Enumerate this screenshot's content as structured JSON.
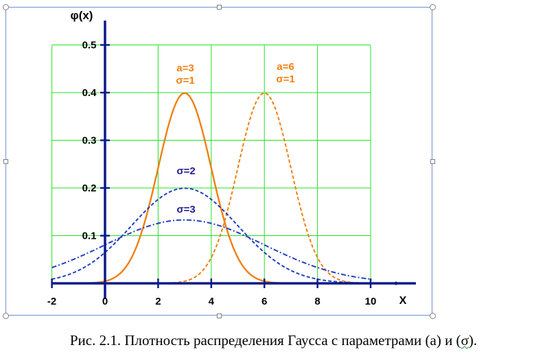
{
  "chart_data": {
    "type": "line",
    "ylabel": "φ(x)",
    "xlabel": "X",
    "xlim": [
      -2,
      10
    ],
    "ylim": [
      0,
      0.5
    ],
    "x_ticks": [
      "-2",
      "0",
      "2",
      "4",
      "6",
      "8",
      "10"
    ],
    "y_ticks": [
      "0.1",
      "0.2",
      "0.3",
      "0.4",
      "0.5"
    ],
    "grid": true,
    "series": [
      {
        "name": "a=3 σ=1",
        "a": 3,
        "sigma": 1,
        "color": "#f07f12",
        "style": "solid"
      },
      {
        "name": "a=6 σ=1",
        "a": 6,
        "sigma": 1,
        "color": "#f07f12",
        "style": "dashed"
      },
      {
        "name": "σ=2",
        "a": 3,
        "sigma": 2,
        "color": "#1f3fbf",
        "style": "dashed"
      },
      {
        "name": "σ=3",
        "a": 3,
        "sigma": 3,
        "color": "#1f3fbf",
        "style": "dashdot"
      }
    ],
    "annotations": [
      {
        "lines": [
          "a=3",
          "σ=1"
        ],
        "color": "#f07f12"
      },
      {
        "lines": [
          "a=6",
          "σ=1"
        ],
        "color": "#f07f12"
      },
      {
        "lines": [
          "σ=2"
        ],
        "color": "#1f1f8f"
      },
      {
        "lines": [
          "σ=3"
        ],
        "color": "#1f1f8f"
      }
    ],
    "colors": {
      "grid": "#22e022",
      "axis": "#0b1a8a"
    }
  },
  "caption": {
    "prefix": "Рис. 2.1. Плотность распределения Гаусса с параметрами (а) и (",
    "marked": "σ",
    "suffix": ")."
  }
}
